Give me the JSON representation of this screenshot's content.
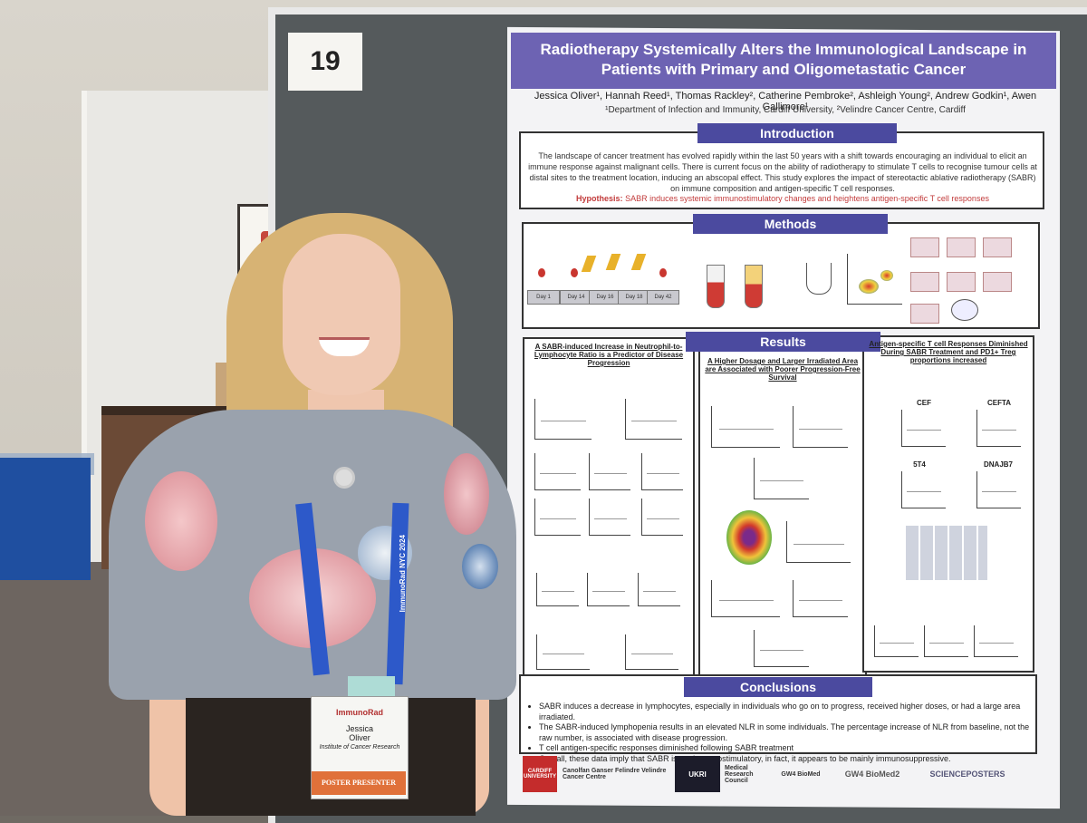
{
  "board_number": "19",
  "poster": {
    "title": "Radiotherapy Systemically Alters the Immunological Landscape in Patients with Primary and Oligometastatic Cancer",
    "authors": "Jessica Oliver¹, Hannah Reed¹, Thomas Rackley², Catherine Pembroke², Ashleigh Young², Andrew Godkin¹, Awen Gallimore¹",
    "affiliations": "¹Department of Infection and Immunity, Cardiff University, ²Velindre Cancer Centre, Cardiff",
    "introduction": {
      "heading": "Introduction",
      "text": "The landscape of cancer treatment has evolved rapidly within the last 50 years with a shift towards encouraging an individual to elicit an immune response against malignant cells. There is current focus on the ability of radiotherapy to stimulate T cells to recognise tumour cells at distal sites to the treatment location, inducing an abscopal effect. This study explores the impact of stereotactic ablative radiotherapy (SABR) on immune composition and antigen-specific T cell responses.",
      "hypothesis_label": "Hypothesis:",
      "hypothesis": "SABR induces systemic immunostimulatory changes and heightens antigen-specific T cell responses"
    },
    "methods": {
      "heading": "Methods",
      "days": [
        "Day 1",
        "Day 14",
        "Day 16",
        "Day 18",
        "Day 42"
      ]
    },
    "results": {
      "heading": "Results",
      "col1_title": "A SABR-induced Increase in Neutrophil-to-Lymphocyte Ratio is a Predictor of Disease Progression",
      "col2_title": "A Higher Dosage and Larger Irradiated Area are Associated with Poorer Progression-Free Survival",
      "col3_title": "Antigen-specific T cell Responses Diminished During SABR Treatment and PD1+ Treg proportions increased",
      "col3_panels": [
        "CEF",
        "CEFTA",
        "5T4",
        "DNAJB7"
      ]
    },
    "conclusions": {
      "heading": "Conclusions",
      "items": [
        "SABR induces a decrease in lymphocytes, especially in individuals who go on to progress, received higher doses, or had a large area irradiated.",
        "The SABR-induced lymphopenia results in an elevated NLR in some individuals. The percentage increase of NLR from baseline, not the raw number, is associated with disease progression.",
        "T cell antigen-specific responses diminished following SABR treatment",
        "Overall, these data imply that SABR is not immunostimulatory, in fact, it appears to be mainly immunosuppressive."
      ]
    },
    "logos": [
      "CARDIFF UNIVERSITY",
      "Canolfan Ganser Felindre Velindre Cancer Centre",
      "UKRI",
      "Medical Research Council",
      "GW4 BioMed",
      "GW4 BioMed2",
      "SCIENCEPOSTERS"
    ]
  },
  "lanyard_text": "ImmunoRad NYC 2024",
  "badge": {
    "logo": "ImmunoRad",
    "name_first": "Jessica",
    "name_last": "Oliver",
    "org": "Institute of Cancer Research",
    "ribbon": "POSTER PRESENTER"
  },
  "colors": {
    "title_bar": "#6d63b3",
    "section_head": "#4b4a9f",
    "hypothesis": "#c23b3b",
    "lanyard": "#2d59c9",
    "ribbon": "#e0713a"
  }
}
